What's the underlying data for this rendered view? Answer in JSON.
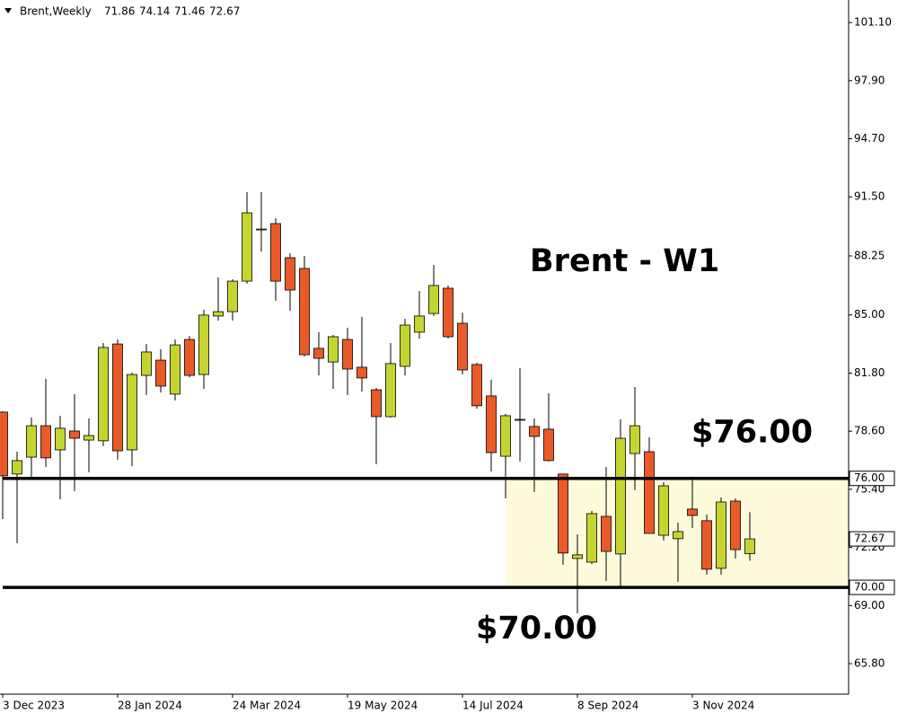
{
  "chart_data": {
    "type": "candlestick",
    "symbol": "Brent,Weekly",
    "title": "Brent - W1",
    "categories": [
      "3 Dec 2023",
      null,
      null,
      null,
      null,
      null,
      null,
      null,
      "28 Jan 2024",
      null,
      null,
      null,
      null,
      null,
      null,
      null,
      "24 Mar 2024",
      null,
      null,
      null,
      null,
      null,
      null,
      null,
      "19 May 2024",
      null,
      null,
      null,
      null,
      null,
      null,
      null,
      "14 Jul 2024",
      null,
      null,
      null,
      null,
      null,
      null,
      null,
      "8 Sep 2024",
      null,
      null,
      null,
      null,
      null,
      null,
      null,
      "3 Nov 2024",
      null,
      null,
      null,
      null
    ],
    "open": [
      79.65,
      76.24,
      77.17,
      78.9,
      77.57,
      78.61,
      78.11,
      78.07,
      83.4,
      77.57,
      81.67,
      82.51,
      80.64,
      83.65,
      81.72,
      84.94,
      85.18,
      86.86,
      89.68,
      90.03,
      88.15,
      87.56,
      83.16,
      82.41,
      83.65,
      82.12,
      80.88,
      79.4,
      82.17,
      84.05,
      85.08,
      86.47,
      84.54,
      82.27,
      80.54,
      77.22,
      79.25,
      78.86,
      78.71,
      76.24,
      71.59,
      71.39,
      73.91,
      71.84,
      77.37,
      77.47,
      72.87,
      72.68,
      74.31,
      73.67,
      71.05,
      74.75,
      71.86
    ],
    "high": [
      79.7,
      77.47,
      79.35,
      81.48,
      79.45,
      80.64,
      79.3,
      83.45,
      83.65,
      81.82,
      83.4,
      83.11,
      83.65,
      83.85,
      85.28,
      87.06,
      86.96,
      91.76,
      91.76,
      90.32,
      88.4,
      88.25,
      84.05,
      83.9,
      84.29,
      84.89,
      80.98,
      83.45,
      84.79,
      86.32,
      87.75,
      86.62,
      85.13,
      82.37,
      81.43,
      79.55,
      82.07,
      79.3,
      80.69,
      76.24,
      72.92,
      74.21,
      76.63,
      79.25,
      81.03,
      78.26,
      75.79,
      73.57,
      76.09,
      74.01,
      74.95,
      74.9,
      74.14
    ],
    "low": [
      73.76,
      72.43,
      75.94,
      76.63,
      74.85,
      75.3,
      76.34,
      77.77,
      77.03,
      76.68,
      80.59,
      80.73,
      80.29,
      81.57,
      80.93,
      84.69,
      84.69,
      86.72,
      88.49,
      85.78,
      85.23,
      82.71,
      81.67,
      80.93,
      80.59,
      80.78,
      76.78,
      79.35,
      81.67,
      83.7,
      84.94,
      83.7,
      81.72,
      79.84,
      76.38,
      74.9,
      76.93,
      75.25,
      76.93,
      71.24,
      68.57,
      71.29,
      70.35,
      69.91,
      75.35,
      72.97,
      72.58,
      70.3,
      73.27,
      70.7,
      70.7,
      71.59,
      71.46
    ],
    "close": [
      76.14,
      76.98,
      78.9,
      77.13,
      78.76,
      78.21,
      78.36,
      83.21,
      77.52,
      81.72,
      82.96,
      81.08,
      83.35,
      81.67,
      84.99,
      85.18,
      86.86,
      90.62,
      89.73,
      86.86,
      86.37,
      82.81,
      82.61,
      83.8,
      82.02,
      81.53,
      79.4,
      82.32,
      84.44,
      84.94,
      86.62,
      83.8,
      81.97,
      80.0,
      77.42,
      79.45,
      79.2,
      78.31,
      76.98,
      71.89,
      71.79,
      74.06,
      71.98,
      78.21,
      78.9,
      72.97,
      75.59,
      73.07,
      73.96,
      71.0,
      74.7,
      72.08,
      72.67
    ],
    "colors": {
      "up": "#c5d52f",
      "down": "#ea5a28"
    },
    "ylim": [
      64.12,
      102.34
    ],
    "yticks": [
      {
        "value": 101.1,
        "label": "101.10"
      },
      {
        "value": 97.9,
        "label": "97.90"
      },
      {
        "value": 94.7,
        "label": "94.70"
      },
      {
        "value": 91.5,
        "label": "91.50"
      },
      {
        "value": 88.25,
        "label": "88.25"
      },
      {
        "value": 85,
        "label": "85.00"
      },
      {
        "value": 81.8,
        "label": "81.80"
      },
      {
        "value": 78.6,
        "label": "78.60"
      },
      {
        "value": 75.4,
        "label": "75.40"
      },
      {
        "value": 72.2,
        "label": "72.20"
      },
      {
        "value": 69,
        "label": "69.00"
      },
      {
        "value": 65.8,
        "label": "65.80"
      }
    ],
    "levels": [
      {
        "value": 76,
        "label": "$76.00",
        "axis_label": "76.00"
      },
      {
        "value": 70,
        "label": "$70.00",
        "axis_label": "70.00"
      }
    ]
  }
}
